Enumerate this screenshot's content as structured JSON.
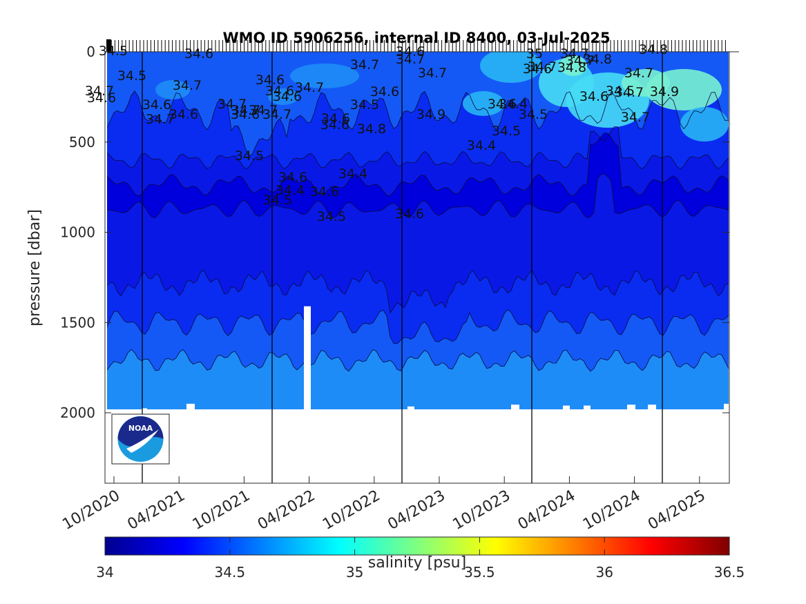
{
  "chart_data": {
    "type": "heatmap",
    "title": "WMO ID 5906256, internal ID 8400, 03-Jul-2025",
    "ylabel": "pressure [dbar]",
    "ylim": [
      0,
      2400
    ],
    "y_reversed": true,
    "yticks": [
      0,
      500,
      1000,
      1500,
      2000
    ],
    "xticks": [
      "10/2020",
      "04/2021",
      "10/2021",
      "04/2022",
      "10/2022",
      "04/2023",
      "10/2023",
      "04/2024",
      "10/2024",
      "04/2025"
    ],
    "data_max_pressure": 2000,
    "colorbar": {
      "label": "salinity [psu]",
      "range": [
        34,
        36.5
      ],
      "ticks": [
        "34",
        "34.5",
        "35",
        "35.5",
        "36",
        "36.5"
      ],
      "colormap": "jet"
    },
    "layer_colors": {
      "34.4": "#0000dc",
      "34.5": "#0a2cf0",
      "34.6": "#1459f5",
      "34.7": "#1e8cf7",
      "34.8": "#28b4f5",
      "34.9": "#46dcf5",
      "35": "#78f0d2"
    },
    "contour_labels": [
      "34.5",
      "34.6",
      "34.5",
      "34.7",
      "34.7",
      "34.6",
      "34.6",
      "34.6",
      "34.7",
      "34.7",
      "34.7",
      "34.6",
      "34.6",
      "34.6",
      "34.7",
      "34.6",
      "34.7",
      "34.7",
      "34.6",
      "34.6",
      "34.5",
      "34.6",
      "34.6",
      "34.7",
      "34.7",
      "34.7",
      "34.8",
      "34.9",
      "35",
      "34.6",
      "34.7",
      "34.8",
      "34.7",
      "34.7",
      "34.8",
      "34.6",
      "34.5",
      "34.7",
      "34.8",
      "34.7",
      "34.9",
      "34.7",
      "34.6",
      "34.4",
      "34.5",
      "34.5",
      "34.4",
      "34.5",
      "34.6",
      "34.4",
      "34.4",
      "34.6",
      "34.5",
      "34.5",
      "34.6"
    ],
    "logo": "NOAA"
  },
  "icons": {
    "logo": "noaa-logo"
  }
}
